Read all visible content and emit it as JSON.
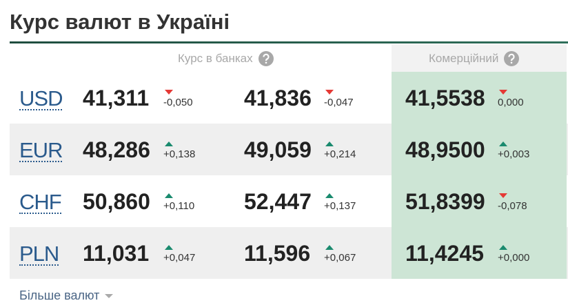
{
  "title": "Курс валют в Україні",
  "header": {
    "banks": "Курс в банках",
    "commercial": "Комерційний"
  },
  "rows": [
    {
      "currency": "USD",
      "buy": "41,311",
      "buy_change": "-0,050",
      "sell": "41,836",
      "sell_change": "-0,047",
      "commercial": "41,5538",
      "commercial_change": "0,000"
    },
    {
      "currency": "EUR",
      "buy": "48,286",
      "buy_change": "+0,138",
      "sell": "49,059",
      "sell_change": "+0,214",
      "commercial": "48,9500",
      "commercial_change": "+0,003"
    },
    {
      "currency": "CHF",
      "buy": "50,860",
      "buy_change": "+0,110",
      "sell": "52,447",
      "sell_change": "+0,137",
      "commercial": "51,8399",
      "commercial_change": "-0,078"
    },
    {
      "currency": "PLN",
      "buy": "11,031",
      "buy_change": "+0,047",
      "sell": "11,596",
      "sell_change": "+0,067",
      "commercial": "11,4245",
      "commercial_change": "+0,000"
    }
  ],
  "more": "Більше валют"
}
